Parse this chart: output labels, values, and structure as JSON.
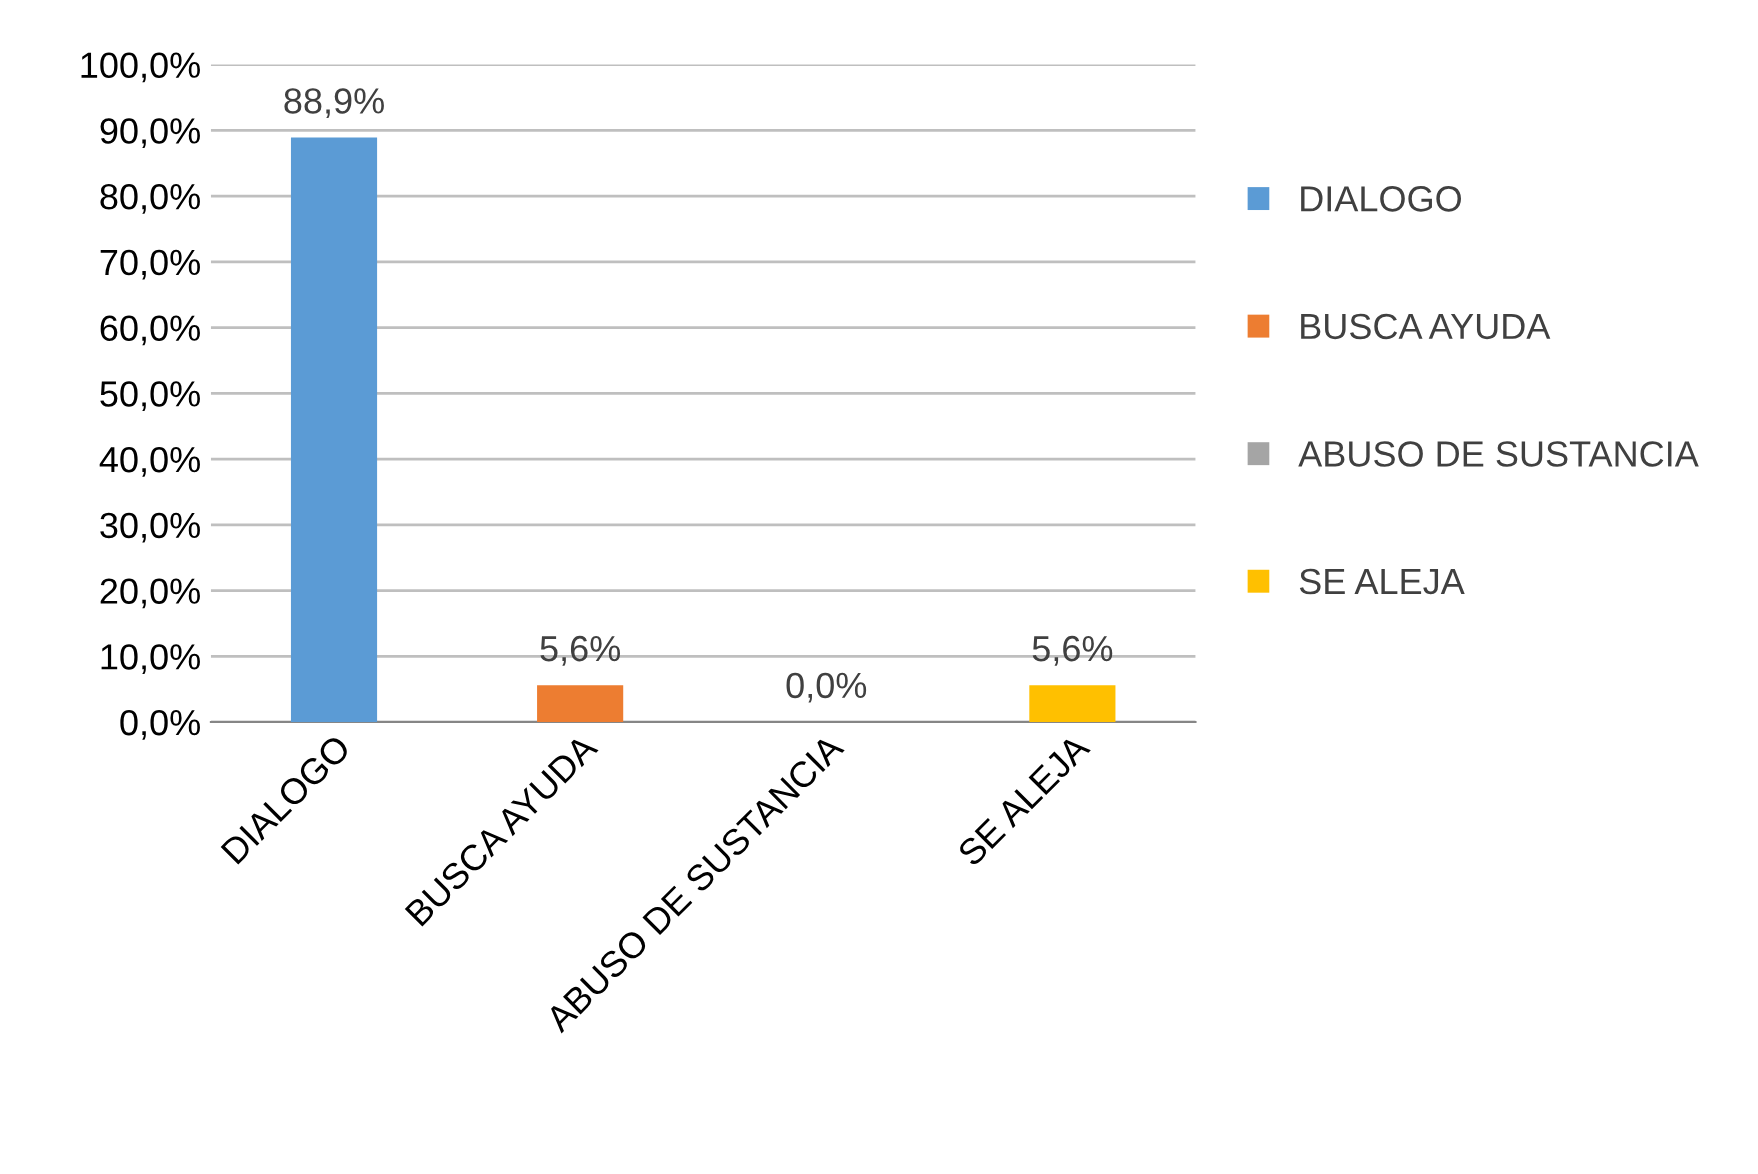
{
  "chart_data": {
    "type": "bar",
    "categories": [
      "DIALOGO",
      "BUSCA AYUDA",
      "ABUSO DE SUSTANCIA",
      "SE ALEJA"
    ],
    "series": [
      {
        "name": "DIALOGO",
        "color": "#5b9bd5",
        "values": [
          88.9,
          null,
          null,
          null
        ],
        "value_labels": [
          "88,9%",
          null,
          null,
          null
        ]
      },
      {
        "name": "BUSCA AYUDA",
        "color": "#ed7d31",
        "values": [
          null,
          5.6,
          null,
          null
        ],
        "value_labels": [
          null,
          "5,6%",
          null,
          null
        ]
      },
      {
        "name": "ABUSO DE SUSTANCIA",
        "color": "#a5a5a5",
        "values": [
          null,
          null,
          0.0,
          null
        ],
        "value_labels": [
          null,
          null,
          "0,0%",
          null
        ]
      },
      {
        "name": "SE ALEJA",
        "color": "#ffc000",
        "values": [
          null,
          null,
          null,
          5.6
        ],
        "value_labels": [
          null,
          null,
          null,
          "5,6%"
        ]
      }
    ],
    "ylim": [
      0,
      100
    ],
    "yticks": [
      {
        "value": 0,
        "label": "0,0%"
      },
      {
        "value": 10,
        "label": "10,0%"
      },
      {
        "value": 20,
        "label": "20,0%"
      },
      {
        "value": 30,
        "label": "30,0%"
      },
      {
        "value": 40,
        "label": "40,0%"
      },
      {
        "value": 50,
        "label": "50,0%"
      },
      {
        "value": 60,
        "label": "60,0%"
      },
      {
        "value": 70,
        "label": "70,0%"
      },
      {
        "value": 80,
        "label": "80,0%"
      },
      {
        "value": 90,
        "label": "90,0%"
      },
      {
        "value": 100,
        "label": "100,0%"
      }
    ],
    "grid": "y",
    "legend": "right"
  }
}
